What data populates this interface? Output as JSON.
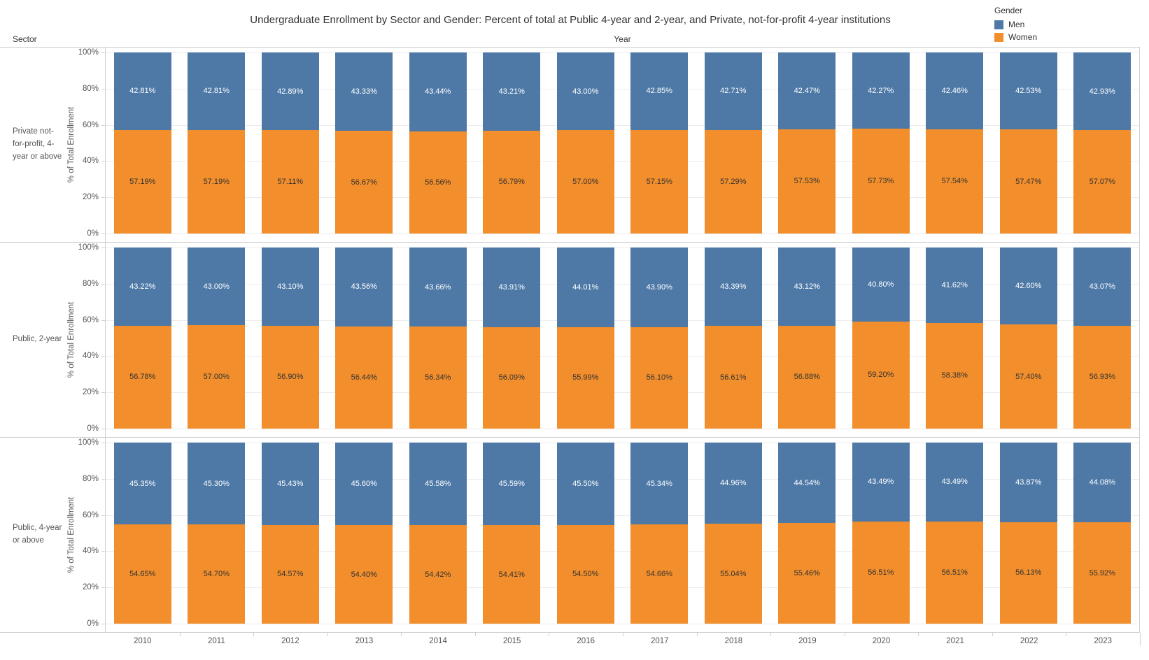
{
  "title": "Undergraduate Enrollment by Sector and Gender: Percent of total at Public 4-year and 2-year, and Private, not-for-profit 4-year institutions",
  "header": {
    "row_dimension": "Sector",
    "column_dimension": "Year"
  },
  "legend": {
    "title": "Gender",
    "items": [
      {
        "label": "Men",
        "color": "#4e79a7",
        "label_text_color": "#ffffff"
      },
      {
        "label": "Women",
        "color": "#f28e2b",
        "label_text_color": "#333333"
      }
    ]
  },
  "y_axis": {
    "label": "% of Total Enrollment",
    "tick_labels": [
      "100%",
      "80%",
      "60%",
      "40%",
      "20%",
      "0%"
    ],
    "min": 0,
    "max": 100
  },
  "chart_data": {
    "type": "bar",
    "stacked": true,
    "orientation": "vertical",
    "grid": true,
    "legend_position": "top-right",
    "title": "Undergraduate Enrollment by Sector and Gender: Percent of total at Public 4-year and 2-year, and Private, not-for-profit 4-year institutions",
    "xlabel": "Year",
    "ylabel": "% of Total Enrollment",
    "ylim": [
      0,
      100
    ],
    "value_label_format": "0.00%",
    "categories": [
      "2010",
      "2011",
      "2012",
      "2013",
      "2014",
      "2015",
      "2016",
      "2017",
      "2018",
      "2019",
      "2020",
      "2021",
      "2022",
      "2023"
    ],
    "panels": [
      {
        "sector": "Private not-for-profit, 4-year or above",
        "series": [
          {
            "name": "Men",
            "color": "#4e79a7",
            "values": [
              42.81,
              42.81,
              42.89,
              43.33,
              43.44,
              43.21,
              43.0,
              42.85,
              42.71,
              42.47,
              42.27,
              42.46,
              42.53,
              42.93
            ]
          },
          {
            "name": "Women",
            "color": "#f28e2b",
            "values": [
              57.19,
              57.19,
              57.11,
              56.67,
              56.56,
              56.79,
              57.0,
              57.15,
              57.29,
              57.53,
              57.73,
              57.54,
              57.47,
              57.07
            ]
          }
        ]
      },
      {
        "sector": "Public, 2-year",
        "series": [
          {
            "name": "Men",
            "color": "#4e79a7",
            "values": [
              43.22,
              43.0,
              43.1,
              43.56,
              43.66,
              43.91,
              44.01,
              43.9,
              43.39,
              43.12,
              40.8,
              41.62,
              42.6,
              43.07
            ]
          },
          {
            "name": "Women",
            "color": "#f28e2b",
            "values": [
              56.78,
              57.0,
              56.9,
              56.44,
              56.34,
              56.09,
              55.99,
              56.1,
              56.61,
              56.88,
              59.2,
              58.38,
              57.4,
              56.93
            ]
          }
        ]
      },
      {
        "sector": "Public, 4-year or above",
        "series": [
          {
            "name": "Men",
            "color": "#4e79a7",
            "values": [
              45.35,
              45.3,
              45.43,
              45.6,
              45.58,
              45.59,
              45.5,
              45.34,
              44.96,
              44.54,
              43.49,
              43.49,
              43.87,
              44.08
            ]
          },
          {
            "name": "Women",
            "color": "#f28e2b",
            "values": [
              54.65,
              54.7,
              54.57,
              54.4,
              54.42,
              54.41,
              54.5,
              54.66,
              55.04,
              55.46,
              56.51,
              56.51,
              56.13,
              55.92
            ]
          }
        ]
      }
    ]
  }
}
